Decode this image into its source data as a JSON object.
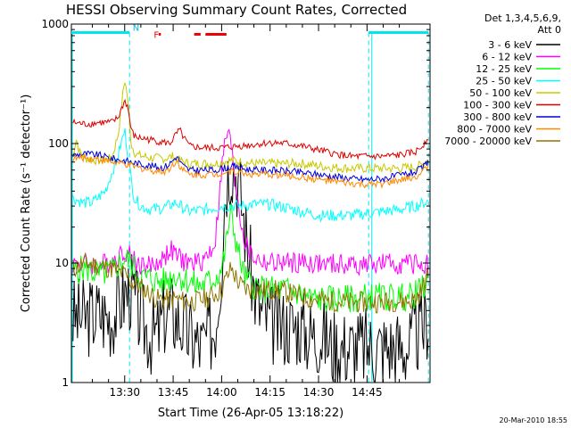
{
  "chart_data": {
    "type": "line",
    "title": "HESSI Observing Summary Count Rates, Corrected",
    "xlabel": "Start Time (26-Apr-05 13:18:22)",
    "ylabel": "Corrected Count Rate (s⁻¹ detector⁻¹)",
    "y_scale": "log",
    "ylim": [
      1,
      1000
    ],
    "xlim_minutes": [
      13.5,
      124.5
    ],
    "x_ticks": [
      {
        "label": "13:30",
        "minutes": 30
      },
      {
        "label": "13:45",
        "minutes": 45
      },
      {
        "label": "14:00",
        "minutes": 60
      },
      {
        "label": "14:15",
        "minutes": 75
      },
      {
        "label": "14:30",
        "minutes": 90
      },
      {
        "label": "14:45",
        "minutes": 105
      }
    ],
    "y_ticks": [
      {
        "label": "1",
        "value": 1
      },
      {
        "label": "10",
        "value": 10
      },
      {
        "label": "100",
        "value": 100
      },
      {
        "label": "1000",
        "value": 1000
      }
    ],
    "legend_header": [
      "Det 1,3,4,5,6,9,",
      "Att 0"
    ],
    "legend_position": "right",
    "series": [
      {
        "name": "3 - 6 keV",
        "color": "#000000",
        "x": [
          14,
          18,
          22,
          26,
          30,
          32,
          34,
          36,
          38,
          40,
          42,
          44,
          46,
          48,
          50,
          52,
          54,
          56,
          58,
          60,
          61,
          62,
          63,
          64,
          65,
          66,
          67,
          68,
          70,
          72,
          74,
          76,
          78,
          80,
          82,
          84,
          86,
          88,
          90,
          92,
          94,
          96,
          98,
          100,
          102,
          104,
          106,
          108,
          110,
          112,
          114,
          116,
          118,
          120,
          122,
          124
        ],
        "y": [
          3.5,
          3.5,
          3.8,
          3.5,
          5.5,
          6,
          4,
          3,
          2.5,
          2.5,
          3.5,
          4,
          3.5,
          3,
          2.5,
          2.2,
          2,
          2.5,
          3,
          10,
          40,
          60,
          70,
          65,
          50,
          35,
          22,
          14,
          6,
          4,
          3.5,
          3,
          3,
          3,
          3,
          3,
          2.7,
          2.5,
          2.5,
          2.5,
          2,
          2,
          2,
          2,
          2,
          2,
          2,
          2,
          2,
          2,
          2,
          2,
          2,
          2.5,
          2.8,
          3.5
        ]
      },
      {
        "name": "6 - 12 keV",
        "color": "#ff00ff",
        "x": [
          14,
          18,
          22,
          26,
          30,
          32,
          34,
          36,
          38,
          40,
          42,
          44,
          46,
          48,
          50,
          52,
          54,
          56,
          58,
          60,
          61,
          62,
          63,
          64,
          65,
          66,
          67,
          68,
          70,
          72,
          74,
          76,
          78,
          80,
          82,
          84,
          86,
          88,
          90,
          92,
          94,
          96,
          98,
          100,
          102,
          104,
          106,
          108,
          110,
          112,
          114,
          116,
          118,
          120,
          122,
          124
        ],
        "y": [
          10,
          10,
          9.5,
          10.5,
          12.5,
          11.5,
          10,
          9.5,
          9.5,
          10,
          11,
          13,
          11.5,
          10.5,
          10,
          10,
          10.5,
          12,
          15,
          60,
          100,
          130,
          90,
          55,
          35,
          22,
          16,
          13,
          11,
          10.5,
          10,
          10,
          10,
          10,
          10,
          10,
          10,
          10,
          9.8,
          9.7,
          9.7,
          9.7,
          9.7,
          9.7,
          9.7,
          9.8,
          9.8,
          9.8,
          9.8,
          9.8,
          9.8,
          9.8,
          9.8,
          9.8,
          9.8,
          10
        ]
      },
      {
        "name": "12 - 25 keV",
        "color": "#00ff00",
        "x": [
          14,
          18,
          22,
          26,
          30,
          32,
          34,
          36,
          38,
          40,
          42,
          44,
          46,
          48,
          50,
          52,
          54,
          56,
          58,
          60,
          61,
          62,
          63,
          64,
          65,
          66,
          67,
          68,
          70,
          72,
          74,
          76,
          78,
          80,
          82,
          84,
          86,
          88,
          90,
          92,
          94,
          96,
          98,
          100,
          102,
          104,
          106,
          108,
          110,
          112,
          114,
          116,
          118,
          120,
          122,
          124
        ],
        "y": [
          8.5,
          9,
          8,
          8.5,
          11,
          10,
          8,
          7.5,
          7.5,
          7,
          7,
          7.5,
          8,
          7.5,
          7,
          6.5,
          6.5,
          7,
          7.5,
          9,
          12,
          20,
          25,
          18,
          13,
          10,
          8,
          7,
          6.5,
          6,
          6,
          6,
          6,
          6,
          5.8,
          5.6,
          5.3,
          5,
          5,
          5,
          5,
          5,
          5,
          5,
          5,
          5.2,
          5.2,
          5.2,
          5.2,
          5.2,
          5.2,
          5.2,
          5.2,
          5.5,
          6,
          7
        ]
      },
      {
        "name": "25 - 50 keV",
        "color": "#00ffff",
        "x": [
          14,
          17,
          20,
          24,
          28,
          30,
          32,
          33,
          35,
          38,
          42,
          46,
          48,
          50,
          55,
          60,
          65,
          70,
          75,
          80,
          85,
          90,
          95,
          100,
          105,
          110,
          115,
          120,
          124
        ],
        "y": [
          35,
          32,
          32,
          40,
          80,
          130,
          50,
          35,
          30,
          28,
          29,
          32,
          29,
          27,
          28,
          30,
          30,
          31,
          31,
          29,
          27,
          25,
          25,
          25,
          26,
          27,
          28,
          30,
          33
        ]
      },
      {
        "name": "50 - 100 keV",
        "color": "#c8c800",
        "x": [
          14,
          15,
          16,
          18,
          22,
          26,
          28,
          30,
          31,
          32,
          33,
          34,
          36,
          38,
          42,
          45,
          47,
          50,
          55,
          58,
          60,
          62,
          64,
          66,
          68,
          70,
          75,
          80,
          85,
          90,
          95,
          100,
          105,
          110,
          115,
          120,
          122,
          124
        ],
        "y": [
          80,
          110,
          85,
          75,
          72,
          75,
          120,
          350,
          230,
          100,
          85,
          80,
          78,
          76,
          75,
          78,
          72,
          68,
          68,
          68,
          70,
          72,
          72,
          70,
          69,
          68,
          68,
          68,
          68,
          65,
          63,
          62,
          62,
          62,
          62,
          64,
          66,
          75
        ]
      },
      {
        "name": "100 - 300 keV",
        "color": "#dd0000",
        "x": [
          14,
          18,
          22,
          26,
          28,
          30,
          31,
          32,
          33,
          34,
          36,
          40,
          44,
          46,
          47,
          48,
          50,
          54,
          58,
          60,
          65,
          70,
          75,
          80,
          85,
          90,
          95,
          100,
          105,
          110,
          115,
          120,
          122,
          124
        ],
        "y": [
          150,
          145,
          150,
          150,
          165,
          230,
          200,
          130,
          115,
          112,
          110,
          105,
          100,
          120,
          130,
          115,
          95,
          92,
          92,
          92,
          95,
          98,
          102,
          100,
          95,
          88,
          82,
          78,
          78,
          78,
          80,
          85,
          95,
          115
        ]
      },
      {
        "name": "300 - 800 keV",
        "color": "#0000dd",
        "x": [
          14,
          18,
          22,
          26,
          30,
          34,
          38,
          42,
          44,
          46,
          47,
          48,
          50,
          54,
          58,
          60,
          62,
          64,
          66,
          68,
          70,
          75,
          80,
          85,
          90,
          95,
          100,
          105,
          110,
          115,
          120,
          122,
          124
        ],
        "y": [
          80,
          82,
          80,
          75,
          72,
          68,
          65,
          63,
          68,
          78,
          72,
          65,
          60,
          60,
          60,
          62,
          63,
          64,
          62,
          61,
          60,
          60,
          59,
          57,
          55,
          53,
          51,
          50,
          51,
          54,
          58,
          62,
          70
        ]
      },
      {
        "name": "800 - 7000 keV",
        "color": "#ff8800",
        "x": [
          14,
          18,
          22,
          26,
          30,
          34,
          38,
          42,
          44,
          46,
          47,
          48,
          50,
          54,
          58,
          60,
          62,
          64,
          66,
          68,
          70,
          75,
          80,
          85,
          90,
          95,
          100,
          105,
          110,
          115,
          120,
          122,
          124
        ],
        "y": [
          75,
          76,
          74,
          70,
          67,
          63,
          60,
          58,
          62,
          72,
          66,
          60,
          55,
          55,
          55,
          57,
          58,
          59,
          57,
          56,
          55,
          55,
          54,
          52,
          50,
          48,
          46,
          45,
          46,
          49,
          53,
          57,
          65
        ]
      },
      {
        "name": "7000 - 20000 keV",
        "color": "#8b7500",
        "x": [
          14,
          18,
          22,
          26,
          30,
          32,
          34,
          36,
          38,
          40,
          42,
          44,
          46,
          48,
          50,
          52,
          54,
          56,
          58,
          60,
          61,
          62,
          63,
          64,
          65,
          66,
          67,
          68,
          70,
          72,
          74,
          76,
          78,
          80,
          82,
          84,
          86,
          88,
          90,
          92,
          94,
          96,
          98,
          100,
          102,
          104,
          106,
          108,
          110,
          112,
          114,
          116,
          118,
          120,
          122,
          124
        ],
        "y": [
          9,
          10,
          9.5,
          9,
          8,
          7,
          6.5,
          6,
          5.5,
          5,
          5,
          5,
          5,
          4.8,
          4.8,
          4.8,
          5,
          5.2,
          5.5,
          6,
          7,
          8,
          9,
          8,
          7,
          6.5,
          6.2,
          6,
          6,
          6,
          6,
          6,
          5.8,
          5.7,
          5.5,
          5.3,
          5.2,
          5,
          5,
          4.8,
          4.8,
          4.8,
          4.7,
          4.7,
          4.7,
          4.7,
          4.7,
          4.7,
          4.7,
          4.8,
          4.8,
          4.8,
          4.8,
          5,
          6,
          8
        ]
      }
    ],
    "annotations": {
      "night_bars": [
        [
          13.5,
          31.5
        ],
        [
          105.5,
          124
        ]
      ],
      "night_label": "N",
      "night_label_minutes": 32.5,
      "saa_lines_minutes": [
        31.5,
        105.5
      ],
      "flare_label": "F",
      "flare_label_minutes": 39,
      "flare_segments": [
        [
          40.5,
          41.2
        ],
        [
          51.5,
          53.5
        ],
        [
          55,
          61.5
        ]
      ]
    },
    "footer_timestamp": "20-Mar-2010 18:55"
  }
}
